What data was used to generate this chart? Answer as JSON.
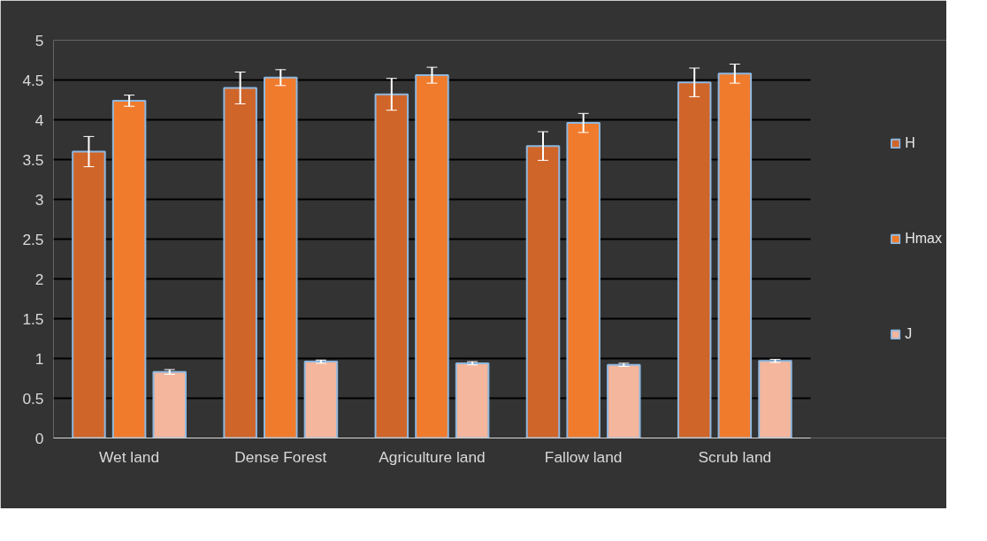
{
  "chart_data": {
    "type": "bar",
    "categories": [
      "Wet land",
      "Dense Forest",
      "Agriculture land",
      "Fallow land",
      "Scrub land"
    ],
    "series": [
      {
        "name": "H",
        "color": "#d0652a",
        "values": [
          3.6,
          4.4,
          4.32,
          3.67,
          4.47
        ],
        "errors": [
          0.19,
          0.2,
          0.2,
          0.18,
          0.18
        ]
      },
      {
        "name": "Hmax",
        "color": "#f07b2c",
        "values": [
          4.24,
          4.53,
          4.56,
          3.96,
          4.58
        ],
        "errors": [
          0.07,
          0.1,
          0.1,
          0.12,
          0.12
        ]
      },
      {
        "name": "J",
        "color": "#f4b69c",
        "values": [
          0.83,
          0.96,
          0.94,
          0.92,
          0.97
        ],
        "errors": [
          0.03,
          0.02,
          0.02,
          0.02,
          0.02
        ]
      }
    ],
    "ylim": [
      0,
      5
    ],
    "yticks": [
      0,
      0.5,
      1,
      1.5,
      2,
      2.5,
      3,
      3.5,
      4,
      4.5,
      5
    ],
    "grid": "y",
    "legend": "right"
  }
}
